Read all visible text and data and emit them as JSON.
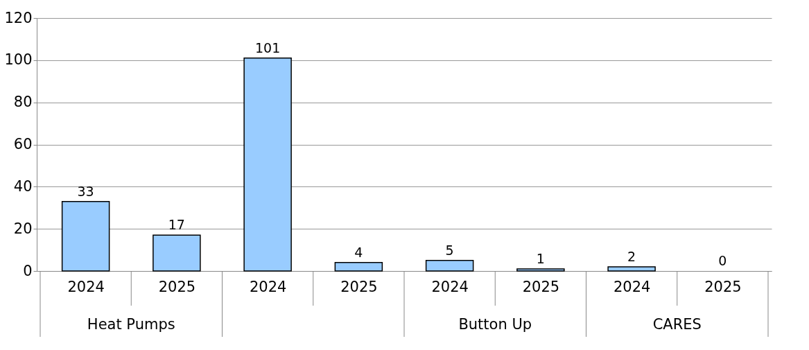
{
  "chart_data": {
    "type": "bar",
    "categories": [
      "2024",
      "2025",
      "2024",
      "2025",
      "2024",
      "2025",
      "2024",
      "2025"
    ],
    "values": [
      33,
      17,
      101,
      4,
      5,
      1,
      2,
      0
    ],
    "color": "#99ccff",
    "ylim": [
      0,
      120
    ],
    "yticks": [
      0,
      20,
      40,
      60,
      80,
      100,
      120
    ],
    "grid": "y",
    "data_labels": true,
    "annotations": [
      "Heat Pumps",
      "Button Up",
      "CARES"
    ]
  }
}
